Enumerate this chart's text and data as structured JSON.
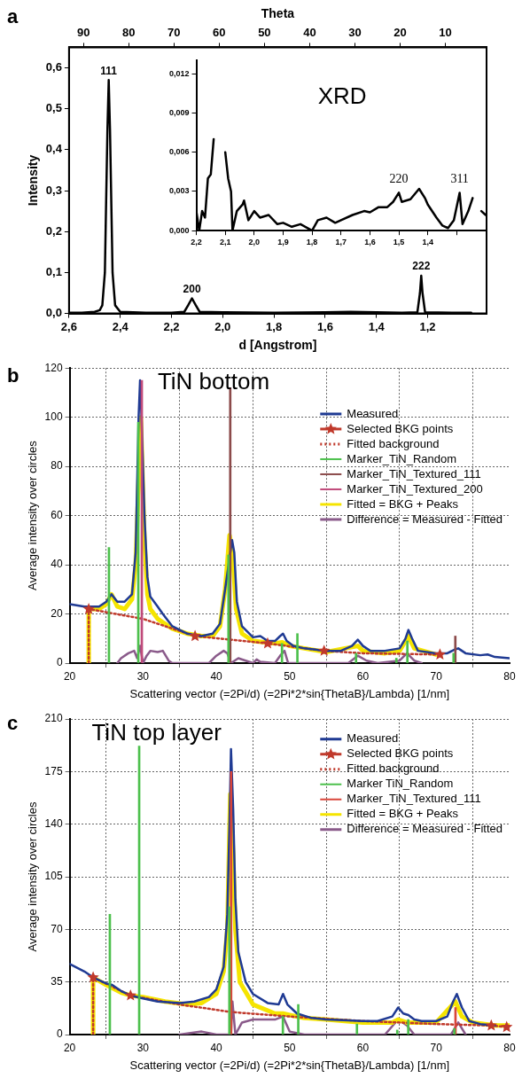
{
  "chart_data": [
    {
      "type": "line",
      "xlabel": "d [Angstrom]",
      "ylabel": "Intensity",
      "x2label": "Theta",
      "color": "#000000",
      "grid": false,
      "legend": false,
      "xlim": [
        2.6,
        0.97
      ],
      "xticks": [
        {
          "value": 2.6,
          "label": "2,6"
        },
        {
          "value": 2.4,
          "label": "2,4"
        },
        {
          "value": 2.2,
          "label": "2,2"
        },
        {
          "value": 2.0,
          "label": "2,0"
        },
        {
          "value": 1.8,
          "label": "1,8"
        },
        {
          "value": 1.6,
          "label": "1,6"
        },
        {
          "value": 1.4,
          "label": "1,4"
        },
        {
          "value": 1.2,
          "label": "1,2"
        }
      ],
      "x2lim": [
        93.2,
        0.9
      ],
      "x2ticks": [
        90,
        80,
        70,
        60,
        50,
        40,
        30,
        20,
        10
      ],
      "ylim": [
        0,
        0.65
      ],
      "yticks": [
        {
          "value": 0,
          "label": "0,0"
        },
        {
          "value": 0.1,
          "label": "0,1"
        },
        {
          "value": 0.2,
          "label": "0,2"
        },
        {
          "value": 0.3,
          "label": "0,3"
        },
        {
          "value": 0.4,
          "label": "0,4"
        },
        {
          "value": 0.5,
          "label": "0,5"
        },
        {
          "value": 0.6,
          "label": "0,6"
        }
      ],
      "x": [
        2.6,
        2.55,
        2.5,
        2.48,
        2.47,
        2.46,
        2.45,
        2.445,
        2.44,
        2.43,
        2.42,
        2.4,
        2.3,
        2.2,
        2.15,
        2.135,
        2.12,
        2.105,
        2.09,
        2.0,
        1.8,
        1.6,
        1.5,
        1.4,
        1.3,
        1.24,
        1.23,
        1.225,
        1.22,
        1.21,
        1.1,
        1.03
      ],
      "values": [
        0.002,
        0.002,
        0.004,
        0.008,
        0.02,
        0.1,
        0.45,
        0.57,
        0.45,
        0.1,
        0.02,
        0.004,
        0.002,
        0.002,
        0.004,
        0.02,
        0.037,
        0.02,
        0.004,
        0.003,
        0.002,
        0.003,
        0.004,
        0.003,
        0.002,
        0.003,
        0.05,
        0.092,
        0.05,
        0.003,
        0.002,
        0.002
      ],
      "annotations": [
        "a",
        {
          "text": "111",
          "x": 2.445,
          "y": 0.57
        },
        {
          "text": "200",
          "x": 2.12,
          "y": 0.037
        },
        {
          "text": "222",
          "x": 1.225,
          "y": 0.092
        }
      ]
    },
    {
      "type": "line",
      "title": "XRD",
      "color": "#000000",
      "grid": false,
      "legend": false,
      "xlim": [
        2.2,
        1.2
      ],
      "xticks": [
        {
          "value": 2.2,
          "label": "2,2"
        },
        {
          "value": 2.1,
          "label": "2,1"
        },
        {
          "value": 2.0,
          "label": "2,0"
        },
        {
          "value": 1.9,
          "label": "1,9"
        },
        {
          "value": 1.8,
          "label": "1,8"
        },
        {
          "value": 1.7,
          "label": "1,7"
        },
        {
          "value": 1.6,
          "label": "1,6"
        },
        {
          "value": 1.5,
          "label": "1,5"
        },
        {
          "value": 1.4,
          "label": "1,4"
        },
        {
          "value": 1.3,
          "label": null
        }
      ],
      "ylim": [
        0,
        0.013
      ],
      "yticks": [
        {
          "value": 0,
          "label": "0,000"
        },
        {
          "value": 0.003,
          "label": "0,003"
        },
        {
          "value": 0.006,
          "label": "0,006"
        },
        {
          "value": 0.009,
          "label": "0,009"
        },
        {
          "value": 0.012,
          "label": "0,012"
        }
      ],
      "x": [
        2.2,
        2.19,
        2.18,
        2.17,
        2.16,
        2.15,
        2.14,
        2.135,
        2.105,
        2.1,
        2.09,
        2.08,
        2.075,
        2.06,
        2.04,
        2.035,
        2.02,
        2.0,
        1.98,
        1.95,
        1.92,
        1.9,
        1.87,
        1.84,
        1.8,
        1.78,
        1.75,
        1.72,
        1.7,
        1.66,
        1.62,
        1.6,
        1.57,
        1.54,
        1.52,
        1.5,
        1.49,
        1.46,
        1.43,
        1.41,
        1.4,
        1.37,
        1.35,
        1.33,
        1.31,
        1.29,
        1.28,
        1.26,
        1.245,
        1.235,
        1.225,
        1.215,
        1.2
      ],
      "values": [
        0.0015,
        0.0,
        0.0015,
        0.001,
        0.004,
        0.0043,
        0.007,
        null,
        null,
        0.006,
        0.004,
        0.003,
        0.0,
        0.0015,
        0.002,
        0.0023,
        0.0008,
        0.0015,
        0.001,
        0.0012,
        0.0005,
        0.0006,
        0.0003,
        0.0005,
        0.0,
        0.0008,
        0.001,
        0.0006,
        0.0008,
        0.0012,
        0.0015,
        0.0014,
        0.0018,
        0.0018,
        0.0022,
        0.0029,
        0.0022,
        0.0024,
        0.0032,
        0.0025,
        0.002,
        0.001,
        0.0004,
        0.0002,
        0.0008,
        0.0029,
        0.0005,
        0.0015,
        0.0025,
        null,
        null,
        0.0015,
        0.0012
      ],
      "annotations": [
        {
          "text": "220",
          "x": 1.5,
          "y": 0.0032
        },
        {
          "text": "311",
          "x": 1.29,
          "y": 0.0032
        }
      ]
    },
    {
      "type": "line",
      "title": "TiN bottom",
      "xlabel": "Scattering vector (=2Pi/d) (=2Pi*2*sin{ThetaB}/Lambda) [1/nm]",
      "ylabel": "Average intensity over circles",
      "grid": true,
      "legend": "top right",
      "xlim": [
        20,
        80
      ],
      "xticks": [
        20,
        30,
        40,
        50,
        60,
        70,
        80
      ],
      "ylim": [
        0,
        120
      ],
      "yticks": [
        0,
        20,
        40,
        60,
        80,
        100,
        120
      ],
      "annotations": [
        "b"
      ],
      "series": [
        {
          "name": "Measured",
          "color": "#1f3a93",
          "x": [
            20,
            22,
            24,
            25,
            25.7,
            26.5,
            27.5,
            28.5,
            29,
            29.4,
            29.6,
            29.8,
            30.2,
            30.6,
            31,
            32,
            32.7,
            34,
            36,
            38,
            39.5,
            40.5,
            41.2,
            42.15,
            42.45,
            42.8,
            43.5,
            45,
            46,
            47,
            48,
            48.7,
            49.1,
            49.6,
            50.5,
            52,
            55,
            57,
            58.5,
            59.3,
            60,
            61,
            63,
            65,
            65.8,
            66.2,
            66.7,
            67.5,
            70,
            71.5,
            72.5,
            73,
            74,
            76,
            77,
            78,
            80
          ],
          "values": [
            24,
            23,
            23,
            25,
            28,
            25,
            25,
            28,
            45,
            100,
            115,
            100,
            60,
            35,
            27,
            23,
            20,
            15,
            12,
            11,
            12,
            16,
            30,
            50,
            45,
            25,
            15,
            10.5,
            11,
            9,
            9,
            11,
            12,
            9,
            7,
            6,
            5,
            5,
            7,
            9.5,
            7,
            5,
            5,
            6,
            10,
            13.5,
            10,
            5,
            4,
            4,
            5.5,
            6,
            4,
            3.2,
            3.5,
            2.5,
            2
          ]
        },
        {
          "name": "Selected BKG points",
          "type": "scatter",
          "marker": "star",
          "color": "#c0392b",
          "x": [
            22.6,
            37.1,
            47,
            54.7,
            70.5
          ],
          "values": [
            22,
            11,
            8,
            5,
            3.5
          ]
        },
        {
          "name": "Fitted background",
          "color": "#c0392b",
          "line_style": "dotted",
          "x": [
            22.6,
            22.6,
            30,
            37.1,
            47,
            54.7,
            60,
            70.5
          ],
          "values": [
            0,
            22,
            18,
            11,
            8,
            5,
            4,
            3.5
          ]
        },
        {
          "name": "Marker_TiN_Random",
          "type": "bar",
          "color": "#4cc04c",
          "x": [
            25.6,
            29.6,
            41.9,
            49.2,
            51.3,
            59.3,
            64.8,
            66.3,
            72.6
          ],
          "values": [
            47,
            98,
            44,
            8,
            12,
            4,
            2,
            9,
            4
          ]
        },
        {
          "name": "Marker_TiN_Textured_111",
          "type": "bar",
          "color": "#8b4a4a",
          "x": [
            41.9,
            72.6
          ],
          "values": [
            112,
            11
          ]
        },
        {
          "name": "Marker_TiN_Textured_200",
          "type": "bar",
          "color": "#c04a7a",
          "x": [
            29.6
          ],
          "values": [
            115
          ]
        },
        {
          "name": "Fitted = BKG + Peaks",
          "color": "#f5e400",
          "x": [
            22.6,
            22.6,
            24,
            25,
            25.7,
            26.5,
            27.5,
            28.5,
            29,
            29.7,
            30.2,
            30.6,
            31,
            32,
            34,
            36,
            38,
            39.5,
            40.5,
            41.2,
            41.8,
            42.2,
            42.7,
            43.5,
            45,
            48,
            49,
            50,
            52,
            55,
            59.3,
            60,
            63,
            65,
            66.2,
            67,
            70
          ],
          "values": [
            0,
            22,
            22,
            24,
            28,
            23,
            22,
            26,
            40,
            100,
            50,
            28,
            22,
            18,
            14,
            12,
            11,
            11,
            15,
            30,
            52,
            45,
            22,
            12,
            9,
            8,
            8.5,
            7,
            6,
            4.5,
            7,
            5,
            4,
            5,
            11,
            6,
            3.5
          ]
        },
        {
          "name": "Difference = Measured - Fitted",
          "color": "#8a5a8a",
          "x": [
            26.5,
            27,
            28,
            28.8,
            29.2,
            29.6,
            30,
            30.5,
            31,
            32,
            32.7,
            33.5,
            34,
            39,
            40,
            41,
            41.5,
            42,
            43,
            44,
            45,
            45.5,
            46,
            48,
            48.7,
            49.3,
            49.8,
            58,
            59.3,
            60.5,
            62,
            65,
            66,
            67,
            68
          ],
          "values": [
            0,
            2,
            4,
            5,
            2,
            7,
            0,
            3,
            5,
            4.5,
            5,
            1,
            0,
            0,
            3,
            5,
            4,
            0,
            2,
            1,
            0,
            1.5,
            0.5,
            0,
            3,
            5,
            0,
            0,
            3,
            1,
            0,
            1,
            4,
            1,
            0
          ]
        }
      ]
    },
    {
      "type": "line",
      "title": "TiN top layer",
      "xlabel": "Scattering vector (=2Pi/d) (=2Pi*2*sin{ThetaB}/Lambda) [1/nm]",
      "ylabel": "Average intensity over circles",
      "grid": true,
      "legend": "top right",
      "xlim": [
        20,
        80
      ],
      "xticks": [
        20,
        30,
        40,
        50,
        60,
        70,
        80
      ],
      "ylim": [
        0,
        210
      ],
      "yticks": [
        0,
        35,
        70,
        105,
        140,
        175,
        210
      ],
      "annotations": [
        "c"
      ],
      "series": [
        {
          "name": "Measured",
          "color": "#1f3a93",
          "x": [
            20,
            22,
            23.2,
            25,
            25.8,
            27,
            28.3,
            30,
            32,
            35,
            37,
            39,
            40,
            41,
            41.5,
            41.8,
            42,
            42.3,
            42.6,
            43,
            44,
            45,
            47,
            48.5,
            49.1,
            49.7,
            51,
            53,
            55,
            58,
            60,
            62,
            64,
            64.8,
            65.5,
            66.2,
            67,
            68,
            70,
            71.5,
            72.3,
            72.8,
            73.5,
            74.5,
            76,
            78
          ],
          "values": [
            47,
            42,
            38,
            34,
            33,
            29,
            26,
            24,
            22,
            21,
            22,
            25,
            30,
            45,
            80,
            140,
            190,
            150,
            90,
            55,
            35,
            27,
            21,
            20,
            27,
            20,
            14,
            11,
            10,
            9.5,
            9,
            9,
            12,
            18,
            14,
            13,
            10,
            9,
            9,
            12,
            22,
            27,
            18,
            9,
            7,
            6
          ]
        },
        {
          "name": "Selected BKG points",
          "type": "scatter",
          "marker": "star",
          "color": "#c0392b",
          "x": [
            23.2,
            28.3,
            77.5,
            79.6
          ],
          "values": [
            38,
            26,
            6,
            5
          ]
        },
        {
          "name": "Fitted background",
          "color": "#c0392b",
          "line_style": "dotted",
          "x": [
            23.2,
            23.2,
            28.3,
            35,
            42,
            50,
            60,
            70,
            77.5,
            79.6
          ],
          "values": [
            0,
            38,
            26,
            20,
            15,
            12,
            9,
            7,
            6,
            5
          ]
        },
        {
          "name": "Marker TiN_Random",
          "type": "bar",
          "color": "#4cc04c",
          "x": [
            25.6,
            29.6,
            41.9,
            49.2,
            51.3,
            59.3,
            64.8,
            66.3,
            72.6
          ],
          "values": [
            80,
            192,
            85,
            12,
            20,
            7,
            3,
            10,
            4
          ]
        },
        {
          "name": "Marker_TiN_Textured_111",
          "type": "bar",
          "color": "#d9453a",
          "x": [
            41.9,
            72.5
          ],
          "values": [
            175,
            18
          ]
        },
        {
          "name": "Fitted = BKG + Peaks",
          "color": "#f5e400",
          "x": [
            23.2,
            23.2,
            25,
            27,
            28.3,
            30,
            33,
            36,
            38,
            40,
            41,
            41.5,
            41.9,
            42.3,
            42.6,
            43.2,
            45,
            48,
            49.1,
            50,
            52,
            55,
            60,
            64,
            64.8,
            66,
            70,
            72.6,
            73.5,
            75,
            78,
            80
          ],
          "values": [
            0,
            38,
            33,
            28,
            26,
            25,
            22,
            20,
            21,
            27,
            42,
            70,
            160,
            120,
            70,
            35,
            20,
            14,
            14,
            13,
            11,
            10,
            8,
            8,
            10,
            8,
            8,
            22,
            12,
            8,
            6,
            6
          ]
        },
        {
          "name": "Difference = Measured - Fitted",
          "color": "#8a5a8a",
          "x": [
            35,
            38,
            40,
            42,
            42.2,
            42.6,
            43.5,
            45,
            48,
            49.1,
            50,
            52,
            63,
            64.8,
            66,
            67,
            72,
            73,
            74
          ],
          "values": [
            0,
            2,
            0,
            0,
            22,
            0,
            8,
            10,
            10,
            12,
            2,
            0,
            0,
            10,
            6,
            0,
            0,
            8,
            0
          ]
        }
      ]
    }
  ]
}
